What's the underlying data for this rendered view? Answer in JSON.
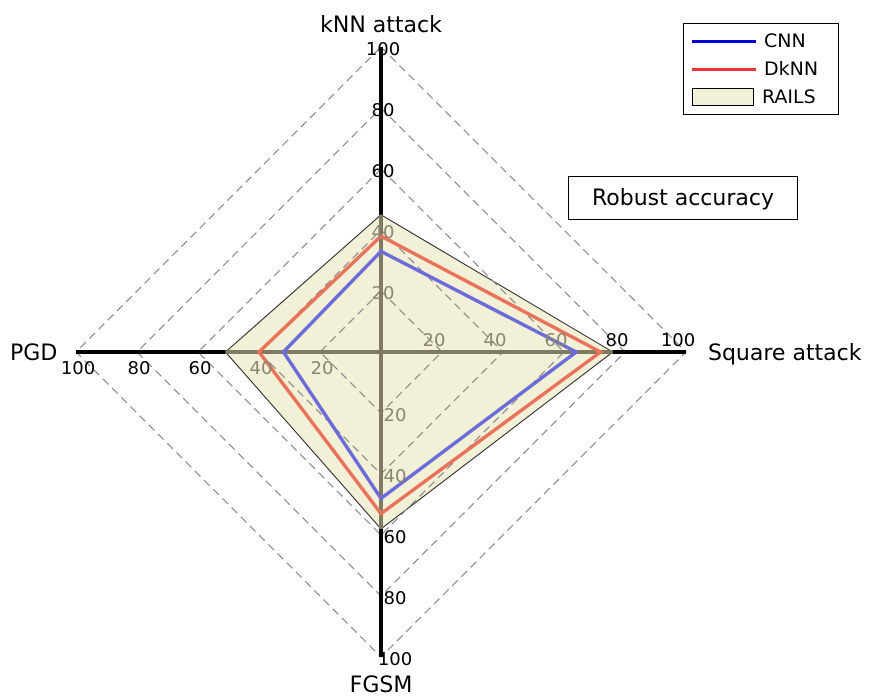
{
  "chart_data": {
    "type": "radar",
    "axes": [
      "kNN attack",
      "Square attack",
      "FGSM",
      "PGD"
    ],
    "rlim": [
      0,
      100
    ],
    "ticks": [
      20,
      40,
      60,
      80,
      100
    ],
    "tick_labels": [
      "20",
      "40",
      "60",
      "80",
      "100"
    ],
    "annotation": "Robust accuracy",
    "grid": true,
    "legend_position": "top-right",
    "series": [
      {
        "name": "CNN",
        "values": [
          33,
          64,
          48,
          32
        ],
        "color": "#6b6bd9",
        "legend_color": "#0000dd",
        "style": "line"
      },
      {
        "name": "DkNN",
        "values": [
          38,
          72,
          53,
          40
        ],
        "color": "#e8735a",
        "legend_color": "#ee3333",
        "style": "line"
      },
      {
        "name": "RAILS",
        "values": [
          45,
          76,
          58,
          51
        ],
        "color": "#f2f0d6",
        "style": "fill"
      }
    ]
  }
}
